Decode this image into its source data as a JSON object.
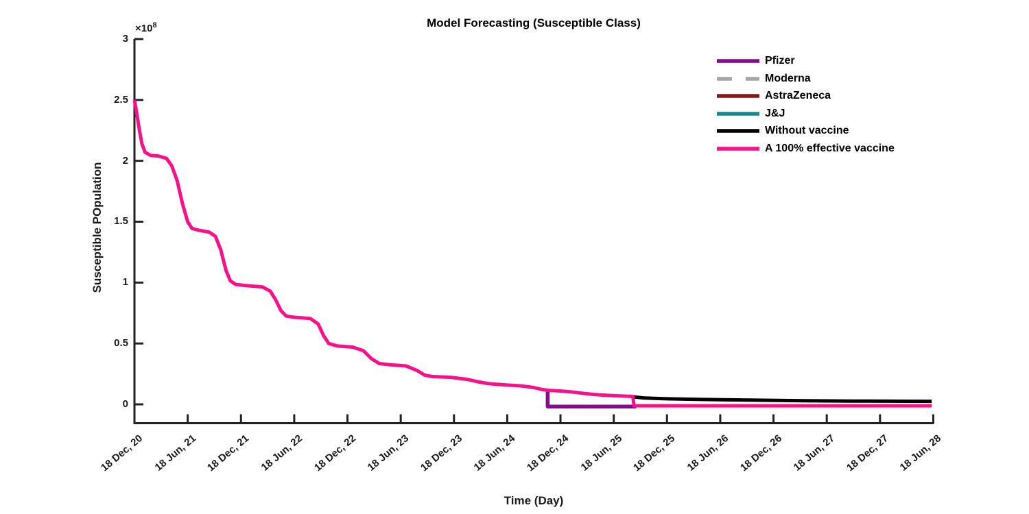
{
  "window": {
    "background": "#ffffff"
  },
  "chart_data": {
    "type": "line",
    "title": "Model Forecasting (Susceptible Class)",
    "x_axis": {
      "label": "Time (Day)",
      "tick_labels": [
        "18 Dec, 20",
        "18 Jun, 21",
        "18 Dec, 21",
        "18 Jun, 22",
        "18 Dec, 22",
        "18 Jun, 23",
        "18 Dec, 23",
        "18 Jun, 24",
        "18 Dec, 24",
        "18 Jun, 25",
        "18 Dec, 25",
        "18 Jun, 26",
        "18 Dec, 26",
        "18 Jun, 27",
        "18 Dec, 27",
        "18 Jun, 28"
      ],
      "tick_values": [
        0,
        1,
        2,
        3,
        4,
        5,
        6,
        7,
        8,
        9,
        10,
        11,
        12,
        13,
        14,
        15
      ],
      "tick_label_rotation_deg": 40
    },
    "y_axis": {
      "label": "Susceptible POpulation",
      "tick_labels": [
        "0",
        "0.5",
        "1",
        "1.5",
        "2",
        "2.5",
        "3"
      ],
      "tick_values": [
        0,
        0.5,
        1,
        1.5,
        2,
        2.5,
        3
      ],
      "exponent_prefix": "×10",
      "exponent": "8",
      "unit_scale": "1e8",
      "ylim": [
        -0.158,
        3
      ]
    },
    "grid": false,
    "legend_position": "upper-right-inside",
    "legend_box": false,
    "axis_color": "#212121",
    "series": [
      {
        "name": "Pfizer",
        "color": "#830D88",
        "dash": "none",
        "width": 5.5,
        "zorder": 4,
        "points": [
          [
            7.76,
            0.112
          ],
          [
            7.76,
            -0.018
          ],
          [
            9.42,
            -0.018
          ]
        ]
      },
      {
        "name": "Moderna",
        "color": "#A5A5A5",
        "dash": "22 20",
        "width": 5,
        "zorder": 1,
        "points": [
          [
            7.76,
            0.112
          ],
          [
            7.76,
            -0.018
          ],
          [
            9.42,
            -0.018
          ]
        ]
      },
      {
        "name": "AstraZeneca",
        "color": "#8B1518",
        "dash": "none",
        "width": 5,
        "zorder": 2,
        "points": [
          [
            7.76,
            0.112
          ],
          [
            7.76,
            -0.018
          ],
          [
            9.42,
            -0.018
          ]
        ]
      },
      {
        "name": "J&J",
        "color": "#17898C",
        "dash": "none",
        "width": 5,
        "zorder": 3,
        "points": [
          [
            7.76,
            0.112
          ],
          [
            7.76,
            -0.018
          ],
          [
            9.42,
            -0.018
          ]
        ]
      },
      {
        "name": "Without vaccine",
        "color": "#000000",
        "dash": "none",
        "width": 5,
        "zorder": 5,
        "points": [
          [
            9.3,
            0.067
          ],
          [
            9.42,
            0.059
          ],
          [
            9.55,
            0.053
          ],
          [
            9.75,
            0.049
          ],
          [
            10.0,
            0.0455
          ],
          [
            10.4,
            0.042
          ],
          [
            11.0,
            0.038
          ],
          [
            11.8,
            0.0335
          ],
          [
            12.6,
            0.03
          ],
          [
            13.5,
            0.027
          ],
          [
            14.97,
            0.0245
          ]
        ]
      },
      {
        "name": "A 100% effective vaccine",
        "color": "#F8128A",
        "dash": "none",
        "width": 5,
        "zorder": 6,
        "points": [
          [
            0.0,
            2.5
          ],
          [
            0.04,
            2.4
          ],
          [
            0.09,
            2.26
          ],
          [
            0.14,
            2.14
          ],
          [
            0.2,
            2.07
          ],
          [
            0.3,
            2.045
          ],
          [
            0.45,
            2.04
          ],
          [
            0.6,
            2.02
          ],
          [
            0.7,
            1.96
          ],
          [
            0.8,
            1.84
          ],
          [
            0.9,
            1.65
          ],
          [
            1.0,
            1.5
          ],
          [
            1.08,
            1.445
          ],
          [
            1.2,
            1.43
          ],
          [
            1.4,
            1.415
          ],
          [
            1.52,
            1.38
          ],
          [
            1.62,
            1.27
          ],
          [
            1.72,
            1.1
          ],
          [
            1.8,
            1.015
          ],
          [
            1.9,
            0.985
          ],
          [
            2.1,
            0.975
          ],
          [
            2.4,
            0.965
          ],
          [
            2.55,
            0.93
          ],
          [
            2.65,
            0.86
          ],
          [
            2.75,
            0.77
          ],
          [
            2.85,
            0.725
          ],
          [
            3.0,
            0.715
          ],
          [
            3.3,
            0.705
          ],
          [
            3.45,
            0.66
          ],
          [
            3.55,
            0.565
          ],
          [
            3.65,
            0.5
          ],
          [
            3.8,
            0.48
          ],
          [
            4.1,
            0.47
          ],
          [
            4.3,
            0.44
          ],
          [
            4.45,
            0.375
          ],
          [
            4.6,
            0.335
          ],
          [
            4.8,
            0.325
          ],
          [
            5.1,
            0.315
          ],
          [
            5.3,
            0.28
          ],
          [
            5.45,
            0.24
          ],
          [
            5.6,
            0.228
          ],
          [
            5.95,
            0.222
          ],
          [
            6.25,
            0.205
          ],
          [
            6.45,
            0.185
          ],
          [
            6.65,
            0.17
          ],
          [
            6.95,
            0.16
          ],
          [
            7.25,
            0.152
          ],
          [
            7.5,
            0.138
          ],
          [
            7.65,
            0.122
          ],
          [
            7.78,
            0.115
          ],
          [
            8.0,
            0.11
          ],
          [
            8.25,
            0.1
          ],
          [
            8.45,
            0.089
          ],
          [
            8.7,
            0.079
          ],
          [
            9.0,
            0.071
          ],
          [
            9.25,
            0.067
          ],
          [
            9.36,
            0.065
          ],
          [
            9.38,
            -0.012
          ],
          [
            14.97,
            -0.012
          ]
        ]
      }
    ]
  }
}
